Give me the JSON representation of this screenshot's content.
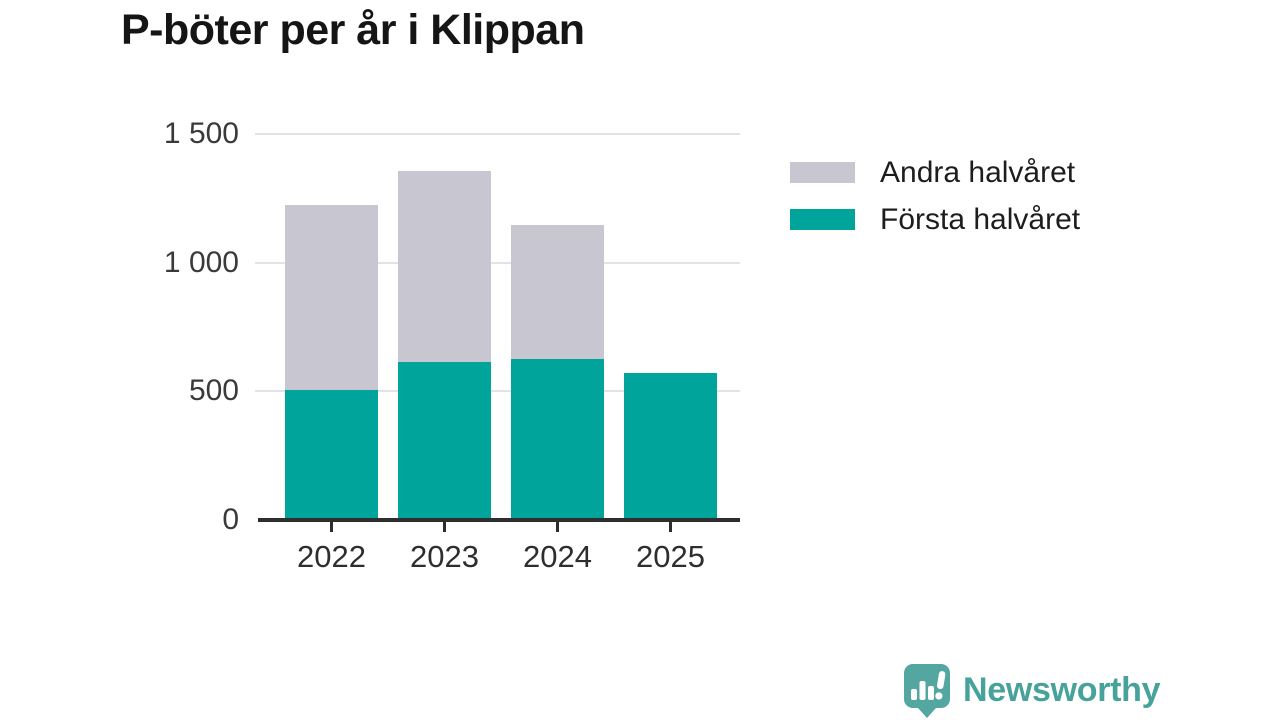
{
  "title": "P-böter per år i Klippan",
  "chart_data": {
    "type": "bar",
    "stacked": true,
    "title": "P-böter per år i Klippan",
    "categories": [
      "2022",
      "2023",
      "2024",
      "2025"
    ],
    "series": [
      {
        "name": "Första halvåret",
        "color": "#00a49a",
        "values": [
          505,
          615,
          625,
          570
        ]
      },
      {
        "name": "Andra halvåret",
        "color": "#c8c6d1",
        "values": [
          720,
          740,
          520,
          0
        ]
      }
    ],
    "totals": [
      1225,
      1355,
      1145,
      570
    ],
    "xlabel": "",
    "ylabel": "",
    "ylim": [
      0,
      1500
    ],
    "yticks": [
      0,
      500,
      1000,
      1500
    ],
    "ytick_labels": [
      "0",
      "500",
      "1 000",
      "1 500"
    ],
    "grid": "horizontal",
    "legend_position": "right"
  },
  "legend": {
    "items": [
      {
        "label": "Andra halvåret",
        "color": "#c8c6d1"
      },
      {
        "label": "Första halvåret",
        "color": "#00a49a"
      }
    ]
  },
  "footer": {
    "brand": "Newsworthy",
    "brand_color": "#47a29b",
    "logo_icon": "bar-chart-speech-bubble"
  },
  "colors": {
    "first_half": "#00a49a",
    "second_half": "#c8c6d1",
    "gridline": "#e3e2e6",
    "axis": "#2e2e2e",
    "title_text": "#151515",
    "tick_text": "#3a3a3a"
  }
}
